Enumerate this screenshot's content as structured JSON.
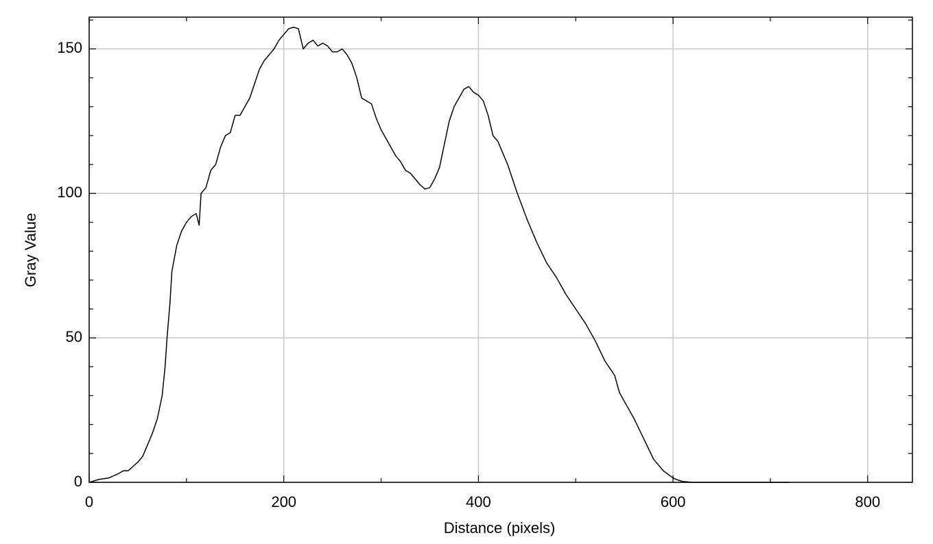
{
  "chart_data": {
    "type": "line",
    "x_label": "Distance (pixels)",
    "y_label": "Gray Value",
    "xlim": [
      0,
      846
    ],
    "ylim": [
      0,
      161
    ],
    "xticks": [
      0,
      200,
      400,
      600,
      800
    ],
    "yticks": [
      0,
      50,
      100,
      150
    ],
    "xminorticks": [
      100,
      300,
      500,
      700
    ],
    "yminorticks": [
      10,
      20,
      30,
      40,
      60,
      70,
      80,
      90,
      110,
      120,
      130,
      140,
      160
    ],
    "grid": true,
    "series": [
      {
        "color": "#000000",
        "x": [
          0,
          10,
          20,
          30,
          35,
          40,
          50,
          55,
          60,
          65,
          70,
          75,
          78,
          80,
          83,
          85,
          90,
          95,
          100,
          105,
          110,
          113,
          115,
          120,
          125,
          130,
          135,
          140,
          145,
          150,
          155,
          160,
          165,
          170,
          175,
          180,
          190,
          195,
          200,
          205,
          210,
          215,
          220,
          225,
          230,
          235,
          240,
          245,
          250,
          255,
          260,
          265,
          270,
          275,
          280,
          285,
          290,
          295,
          300,
          305,
          310,
          315,
          320,
          325,
          330,
          335,
          340,
          345,
          350,
          355,
          360,
          365,
          370,
          375,
          380,
          385,
          390,
          395,
          400,
          405,
          410,
          415,
          420,
          425,
          430,
          440,
          450,
          460,
          470,
          480,
          490,
          500,
          510,
          520,
          530,
          540,
          545,
          550,
          560,
          570,
          580,
          590,
          600,
          605,
          610,
          620,
          650,
          680,
          720
        ],
        "values": [
          0,
          1,
          1.5,
          3,
          4,
          4,
          7,
          9,
          13,
          17,
          22,
          30,
          40,
          50,
          62,
          73,
          82,
          87,
          90,
          92,
          93,
          89,
          100,
          102,
          108,
          110,
          116,
          120,
          121,
          127,
          127,
          130,
          133,
          138,
          143,
          146,
          150,
          153,
          155,
          157,
          157.5,
          157,
          150,
          152,
          153,
          151,
          152,
          151,
          149,
          149,
          150,
          148,
          145,
          140,
          133,
          132,
          131,
          126,
          122,
          119,
          116,
          113,
          111,
          108,
          107,
          105,
          103,
          101.5,
          102,
          105,
          109,
          117,
          125,
          130,
          133,
          136,
          137,
          135,
          134,
          132,
          127,
          120,
          118,
          114,
          110,
          100,
          91,
          83,
          76,
          71,
          65,
          60,
          55,
          49,
          42,
          37,
          31,
          28,
          22,
          15,
          8,
          4,
          1.5,
          0.8,
          0.3,
          0,
          0,
          0,
          0
        ]
      }
    ]
  }
}
